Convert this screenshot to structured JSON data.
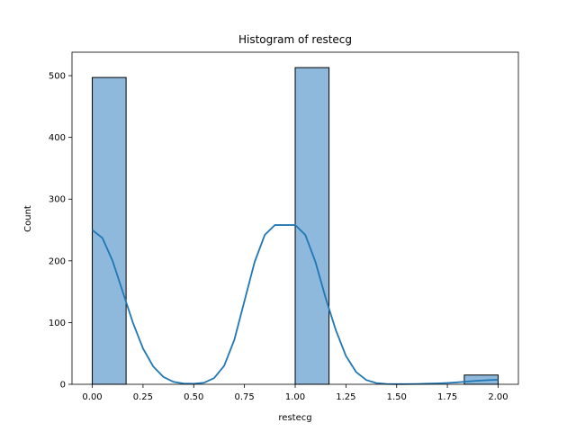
{
  "chart_data": {
    "type": "bar",
    "title": "Histogram of restecg",
    "xlabel": "restecg",
    "ylabel": "Count",
    "xlim": [
      -0.1,
      2.1
    ],
    "ylim": [
      0,
      538
    ],
    "x_ticks": [
      "0.00",
      "0.25",
      "0.50",
      "0.75",
      "1.00",
      "1.25",
      "1.50",
      "1.75",
      "2.00"
    ],
    "y_ticks": [
      "0",
      "100",
      "200",
      "300",
      "400",
      "500"
    ],
    "bins": [
      {
        "x0": 0.0,
        "x1": 0.1667,
        "count": 497
      },
      {
        "x0": 0.1667,
        "x1": 0.3333,
        "count": 0
      },
      {
        "x0": 0.3333,
        "x1": 0.5,
        "count": 0
      },
      {
        "x0": 0.5,
        "x1": 0.6667,
        "count": 0
      },
      {
        "x0": 0.6667,
        "x1": 0.8333,
        "count": 0
      },
      {
        "x0": 0.8333,
        "x1": 1.0,
        "count": 0
      },
      {
        "x0": 1.0,
        "x1": 1.1667,
        "count": 513
      },
      {
        "x0": 1.1667,
        "x1": 1.3333,
        "count": 0
      },
      {
        "x0": 1.3333,
        "x1": 1.5,
        "count": 0
      },
      {
        "x0": 1.5,
        "x1": 1.6667,
        "count": 0
      },
      {
        "x0": 1.6667,
        "x1": 1.8333,
        "count": 0
      },
      {
        "x0": 1.8333,
        "x1": 2.0,
        "count": 15
      }
    ],
    "kde": {
      "x": [
        0.0,
        0.05,
        0.1,
        0.15,
        0.2,
        0.25,
        0.3,
        0.35,
        0.4,
        0.45,
        0.5,
        0.55,
        0.6,
        0.65,
        0.7,
        0.75,
        0.8,
        0.85,
        0.9,
        0.95,
        1.0,
        1.05,
        1.1,
        1.15,
        1.2,
        1.25,
        1.3,
        1.35,
        1.4,
        1.45,
        1.5,
        1.55,
        1.6,
        1.65,
        1.7,
        1.75,
        1.8,
        1.85,
        1.9,
        1.95,
        2.0
      ],
      "y": [
        250,
        237,
        200,
        150,
        100,
        58,
        29,
        12,
        4,
        1.2,
        0.8,
        2.5,
        10,
        30,
        72,
        135,
        198,
        242,
        258,
        258,
        258,
        242,
        198,
        140,
        88,
        46,
        20,
        7,
        2,
        0.6,
        0.3,
        0.4,
        0.6,
        1,
        1.5,
        2.2,
        3.2,
        4.5,
        5.8,
        6.8,
        7.5
      ]
    },
    "colors": {
      "bar_fill": "#8fb9dc",
      "bar_edge": "#000000",
      "kde_line": "#1f77b4"
    },
    "grid": false,
    "legend": "none"
  }
}
